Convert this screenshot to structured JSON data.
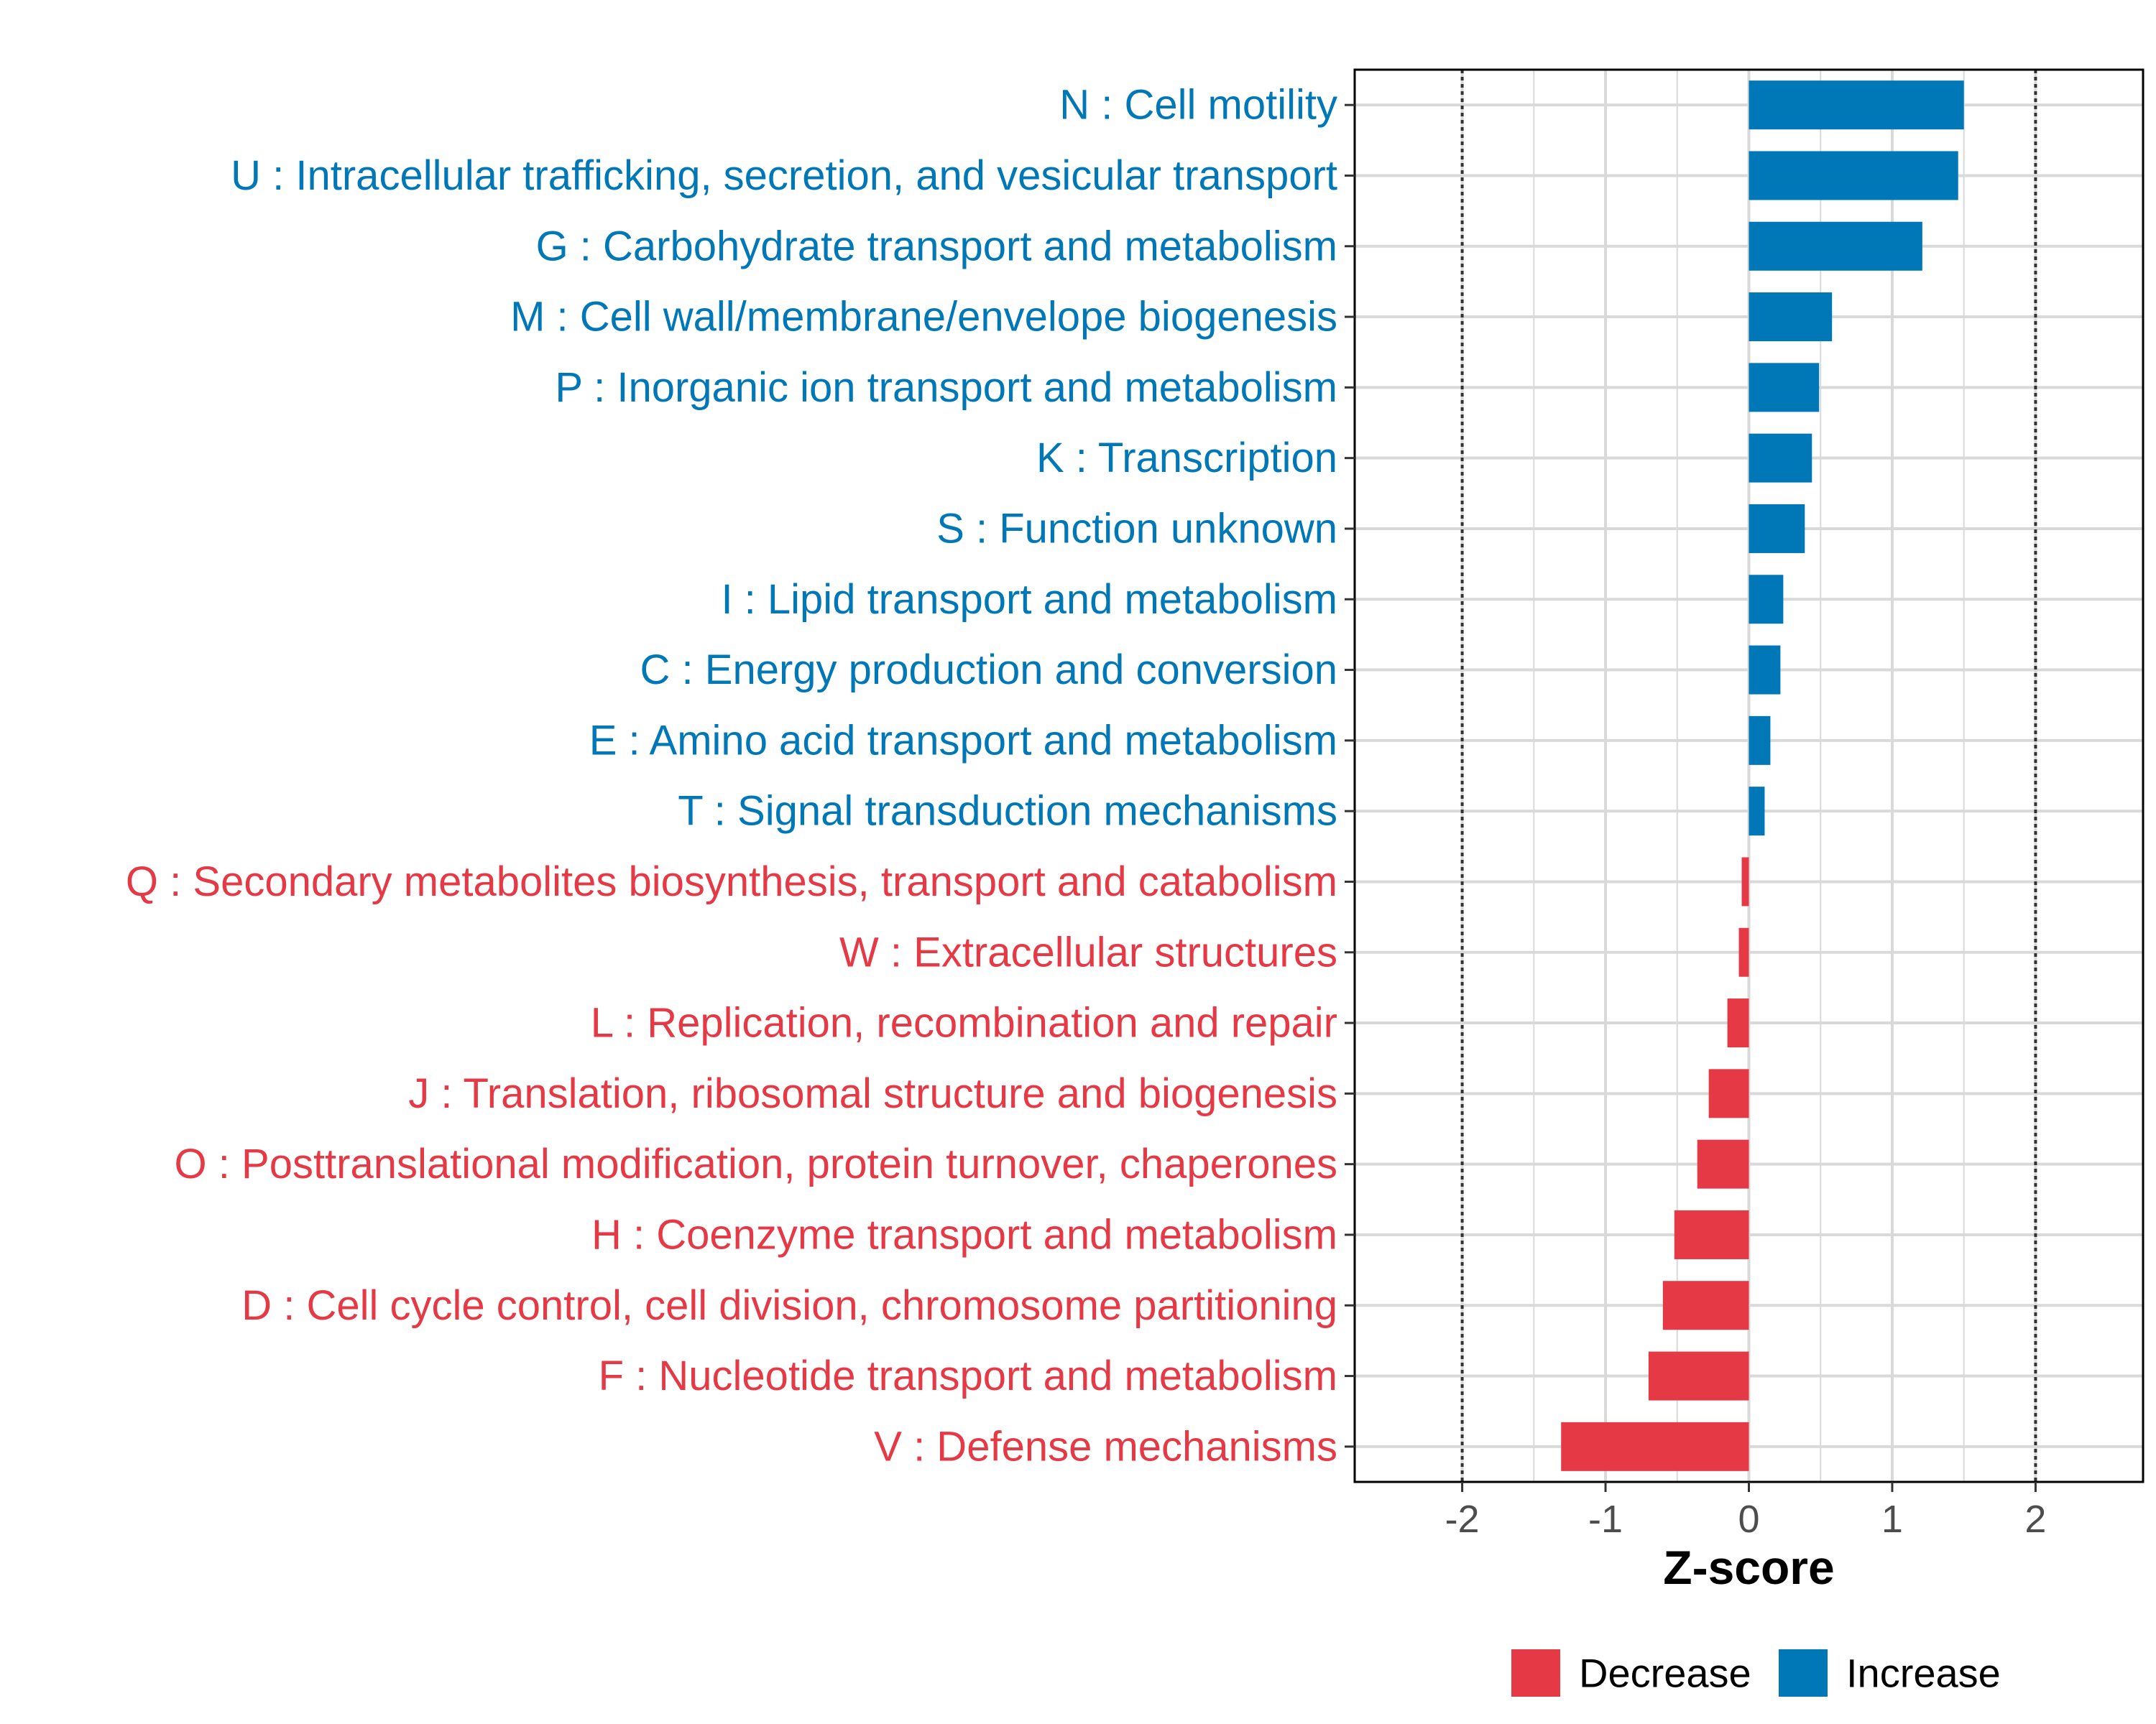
{
  "chart_data": {
    "type": "bar",
    "orientation": "horizontal",
    "xlabel": "Z-score",
    "ylabel": "",
    "xlim": [
      -2.75,
      2.75
    ],
    "xticks": [
      -2,
      -1,
      0,
      1,
      2
    ],
    "reference_lines": [
      -2,
      2
    ],
    "grid": true,
    "legend_position": "bottom-right",
    "legend": [
      {
        "name": "Decrease",
        "color": "#e63946"
      },
      {
        "name": "Increase",
        "color": "#0077b6"
      }
    ],
    "categories": [
      "N : Cell motility",
      "U : Intracellular trafficking, secretion, and vesicular transport",
      "G : Carbohydrate transport and metabolism",
      "M : Cell wall/membrane/envelope biogenesis",
      "P : Inorganic ion transport and metabolism",
      "K : Transcription",
      "S : Function unknown",
      "I : Lipid transport and metabolism",
      "C : Energy production and conversion",
      "E : Amino acid transport and metabolism",
      "T : Signal transduction mechanisms",
      "Q : Secondary metabolites biosynthesis, transport and catabolism",
      "W : Extracellular structures",
      "L : Replication, recombination and repair",
      "J : Translation, ribosomal structure and biogenesis",
      "O : Posttranslational modification, protein turnover, chaperones",
      "H : Coenzyme transport and metabolism",
      "D : Cell cycle control, cell division, chromosome partitioning",
      "F : Nucleotide transport and metabolism",
      "V : Defense mechanisms"
    ],
    "values": [
      1.5,
      1.46,
      1.21,
      0.58,
      0.49,
      0.44,
      0.39,
      0.24,
      0.22,
      0.15,
      0.11,
      -0.05,
      -0.07,
      -0.15,
      -0.28,
      -0.36,
      -0.52,
      -0.6,
      -0.7,
      -1.31
    ],
    "colors": {
      "increase": "#0077b6",
      "decrease": "#e63946",
      "grid": "#d9d9d9",
      "frame": "#000000",
      "refline": "#333333"
    }
  }
}
